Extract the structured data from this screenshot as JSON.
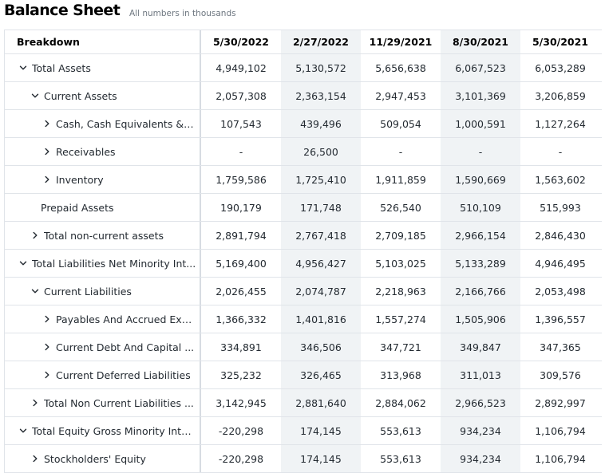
{
  "page": {
    "title": "Balance Sheet",
    "subtitle": "All numbers in thousands"
  },
  "table": {
    "header": {
      "breakdown": "Breakdown",
      "dates": [
        "5/30/2022",
        "2/27/2022",
        "11/29/2021",
        "8/30/2021",
        "5/30/2021"
      ]
    },
    "rows": [
      {
        "label": "Total Assets",
        "indent": 0,
        "icon": "chevron-down-icon",
        "values": [
          "4,949,102",
          "5,130,572",
          "5,656,638",
          "6,067,523",
          "6,053,289"
        ]
      },
      {
        "label": "Current Assets",
        "indent": 1,
        "icon": "chevron-down-icon",
        "values": [
          "2,057,308",
          "2,363,154",
          "2,947,453",
          "3,101,369",
          "3,206,859"
        ]
      },
      {
        "label": "Cash, Cash Equivalents & S...",
        "indent": 2,
        "icon": "chevron-right-icon",
        "values": [
          "107,543",
          "439,496",
          "509,054",
          "1,000,591",
          "1,127,264"
        ]
      },
      {
        "label": "Receivables",
        "indent": 2,
        "icon": "chevron-right-icon",
        "values": [
          "-",
          "26,500",
          "-",
          "-",
          "-"
        ]
      },
      {
        "label": "Inventory",
        "indent": 2,
        "icon": "chevron-right-icon",
        "values": [
          "1,759,586",
          "1,725,410",
          "1,911,859",
          "1,590,669",
          "1,563,602"
        ]
      },
      {
        "label": "Prepaid Assets",
        "indent": 1,
        "icon": "",
        "values": [
          "190,179",
          "171,748",
          "526,540",
          "510,109",
          "515,993"
        ]
      },
      {
        "label": "Total non-current assets",
        "indent": 1,
        "icon": "chevron-right-icon",
        "values": [
          "2,891,794",
          "2,767,418",
          "2,709,185",
          "2,966,154",
          "2,846,430"
        ]
      },
      {
        "label": "Total Liabilities Net Minority Int...",
        "indent": 0,
        "icon": "chevron-down-icon",
        "values": [
          "5,169,400",
          "4,956,427",
          "5,103,025",
          "5,133,289",
          "4,946,495"
        ]
      },
      {
        "label": "Current Liabilities",
        "indent": 1,
        "icon": "chevron-down-icon",
        "values": [
          "2,026,455",
          "2,074,787",
          "2,218,963",
          "2,166,766",
          "2,053,498"
        ]
      },
      {
        "label": "Payables And Accrued Exp...",
        "indent": 2,
        "icon": "chevron-right-icon",
        "values": [
          "1,366,332",
          "1,401,816",
          "1,557,274",
          "1,505,906",
          "1,396,557"
        ]
      },
      {
        "label": "Current Debt And Capital ...",
        "indent": 2,
        "icon": "chevron-right-icon",
        "values": [
          "334,891",
          "346,506",
          "347,721",
          "349,847",
          "347,365"
        ]
      },
      {
        "label": "Current Deferred Liabilities",
        "indent": 2,
        "icon": "chevron-right-icon",
        "values": [
          "325,232",
          "326,465",
          "313,968",
          "311,013",
          "309,576"
        ]
      },
      {
        "label": "Total Non Current Liabilities ...",
        "indent": 1,
        "icon": "chevron-right-icon",
        "values": [
          "3,142,945",
          "2,881,640",
          "2,884,062",
          "2,966,523",
          "2,892,997"
        ]
      },
      {
        "label": "Total Equity Gross Minority Inte...",
        "indent": 0,
        "icon": "chevron-down-icon",
        "values": [
          "-220,298",
          "174,145",
          "553,613",
          "934,234",
          "1,106,794"
        ]
      },
      {
        "label": "Stockholders' Equity",
        "indent": 1,
        "icon": "chevron-right-icon",
        "values": [
          "-220,298",
          "174,145",
          "553,613",
          "934,234",
          "1,106,794"
        ]
      }
    ]
  },
  "colors": {
    "shaded_column_bg": "#f0f3f5",
    "border": "#e0e4e9",
    "text": "#232a31"
  }
}
